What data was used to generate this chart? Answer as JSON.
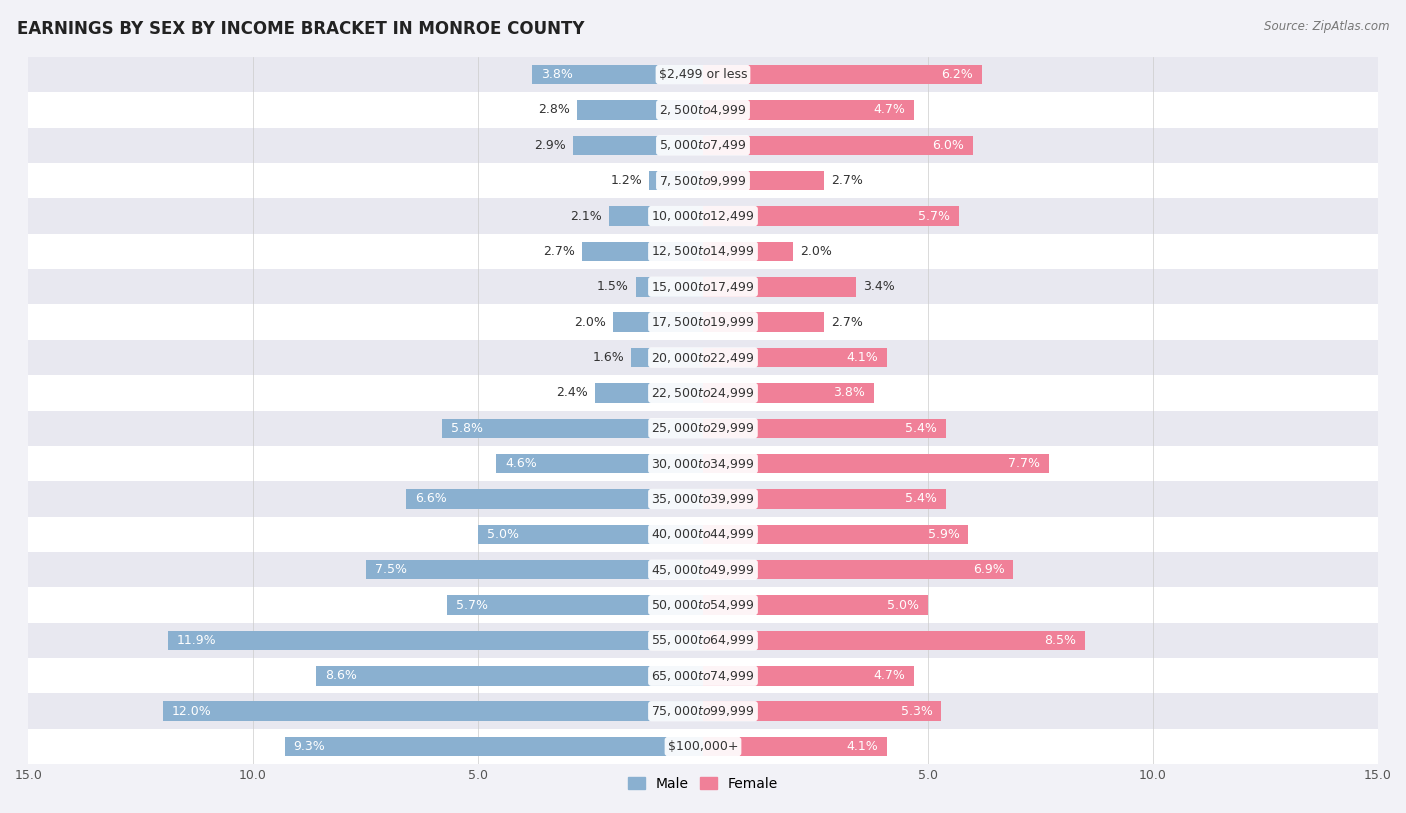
{
  "title": "EARNINGS BY SEX BY INCOME BRACKET IN MONROE COUNTY",
  "source": "Source: ZipAtlas.com",
  "categories": [
    "$2,499 or less",
    "$2,500 to $4,999",
    "$5,000 to $7,499",
    "$7,500 to $9,999",
    "$10,000 to $12,499",
    "$12,500 to $14,999",
    "$15,000 to $17,499",
    "$17,500 to $19,999",
    "$20,000 to $22,499",
    "$22,500 to $24,999",
    "$25,000 to $29,999",
    "$30,000 to $34,999",
    "$35,000 to $39,999",
    "$40,000 to $44,999",
    "$45,000 to $49,999",
    "$50,000 to $54,999",
    "$55,000 to $64,999",
    "$65,000 to $74,999",
    "$75,000 to $99,999",
    "$100,000+"
  ],
  "male_values": [
    3.8,
    2.8,
    2.9,
    1.2,
    2.1,
    2.7,
    1.5,
    2.0,
    1.6,
    2.4,
    5.8,
    4.6,
    6.6,
    5.0,
    7.5,
    5.7,
    11.9,
    8.6,
    12.0,
    9.3
  ],
  "female_values": [
    6.2,
    4.7,
    6.0,
    2.7,
    5.7,
    2.0,
    3.4,
    2.7,
    4.1,
    3.8,
    5.4,
    7.7,
    5.4,
    5.9,
    6.9,
    5.0,
    8.5,
    4.7,
    5.3,
    4.1
  ],
  "male_color": "#8ab0d0",
  "female_color": "#f08098",
  "axis_max": 15.0,
  "background_color": "#f2f2f7",
  "row_color_odd": "#ffffff",
  "row_color_even": "#e8e8f0",
  "title_fontsize": 12,
  "label_fontsize": 9,
  "tick_fontsize": 9,
  "legend_fontsize": 10,
  "category_fontsize": 9
}
